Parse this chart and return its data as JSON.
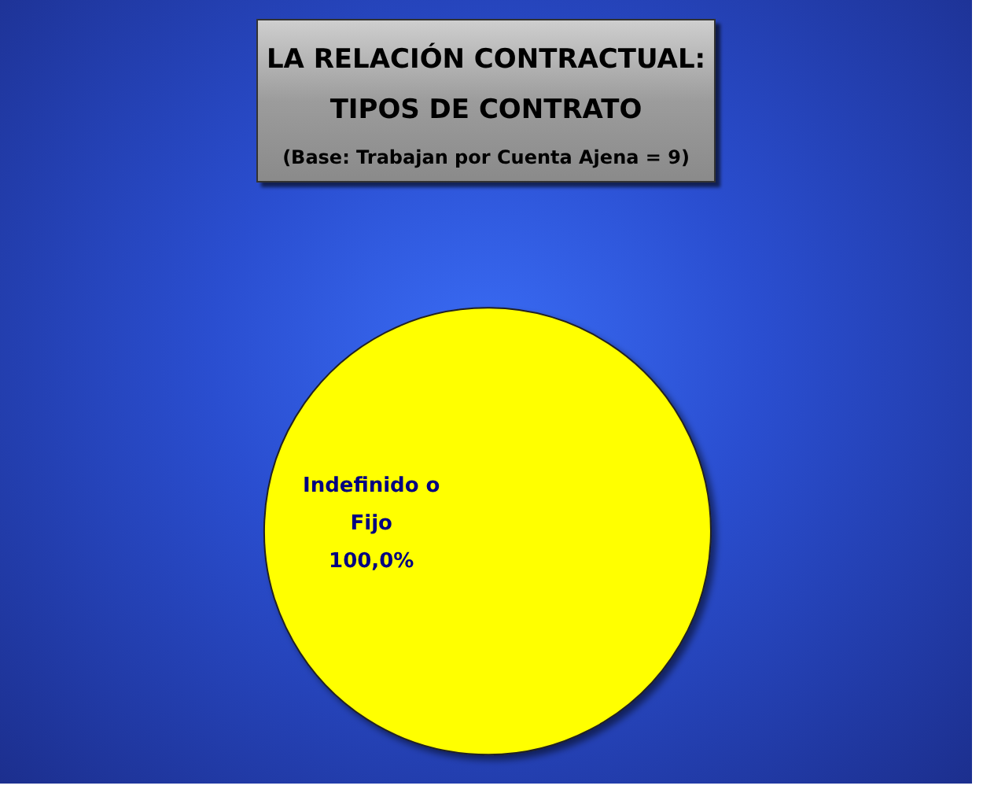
{
  "chart_data": {
    "type": "pie",
    "title": "LA RELACIÓN CONTRACTUAL:\nTIPOS DE CONTRATO",
    "subtitle": "(Base: Trabajan por Cuenta Ajena = 9)",
    "categories": [
      "Indefinido o\nFijo"
    ],
    "values": [
      100
    ],
    "colors": [
      "#ffff00"
    ],
    "value_labels": [
      "100,0%"
    ],
    "legend": false
  }
}
